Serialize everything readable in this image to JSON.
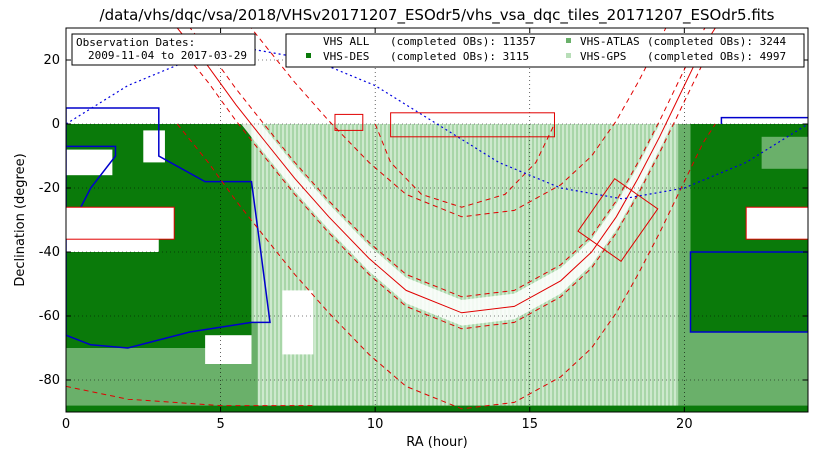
{
  "chart_data": {
    "type": "scatter",
    "title": "/data/vhs/dqc/vsa/2018/VHSv20171207_ESOdr5/vhs_vsa_dqc_tiles_20171207_ESOdr5.fits",
    "xlabel": "RA (hour)",
    "ylabel": "Declination (degree)",
    "xlim": [
      0,
      24
    ],
    "ylim": [
      -90,
      30
    ],
    "xticks": [
      0,
      5,
      10,
      15,
      20
    ],
    "yticks": [
      20,
      0,
      -20,
      -40,
      -60,
      -80
    ],
    "grid": true,
    "annotation": {
      "line1": "Observation Dates:",
      "line2": "2009-11-04 to 2017-03-29"
    },
    "legend": {
      "placement": "top-right",
      "entries": [
        {
          "label": "VHS ALL",
          "text": "(completed OBs): 11357",
          "color": ""
        },
        {
          "label": "VHS-ATLAS",
          "text": "(completed OBs): 3244",
          "color": "#6ab06a"
        },
        {
          "label": "VHS-DES",
          "text": "(completed OBs): 3115",
          "color": "#0a7a0a"
        },
        {
          "label": "VHS-GPS",
          "text": "(completed OBs): 4997",
          "color": "#b8deb8"
        }
      ]
    },
    "colors": {
      "des": "#0a7a0a",
      "atlas": "#6ab06a",
      "gps": "#b8deb8",
      "galactic": "#e00000",
      "ecliptic": "#0000e0",
      "footprint": "#0000cc",
      "box": "#e00000"
    },
    "regions": {
      "gps_band": {
        "ra": [
          3,
          21
        ],
        "dec": [
          -90,
          0
        ]
      },
      "atlas_left": {
        "ra": [
          0,
          6.2
        ],
        "dec": [
          -90,
          -62
        ]
      },
      "des_left": {
        "ra": [
          0,
          6
        ],
        "dec": [
          -70,
          0
        ]
      },
      "des_right": {
        "ra": [
          20.2,
          24
        ],
        "dec": [
          -65,
          0
        ]
      },
      "atlas_right": {
        "ra": [
          19.8,
          24
        ],
        "dec": [
          -90,
          0
        ]
      },
      "bottom_strip": {
        "ra": [
          0,
          24
        ],
        "dec": [
          -90,
          -88
        ]
      }
    },
    "galactic_plane": [
      [
        3.6,
        30
      ],
      [
        4.6,
        18
      ],
      [
        5.5,
        6
      ],
      [
        6.4,
        -5
      ],
      [
        7.4,
        -17
      ],
      [
        8.5,
        -29
      ],
      [
        9.8,
        -42
      ],
      [
        11.0,
        -52
      ],
      [
        12.8,
        -59
      ],
      [
        14.5,
        -57
      ],
      [
        16.0,
        -49
      ],
      [
        17.0,
        -40
      ],
      [
        17.8,
        -29
      ],
      [
        18.5,
        -17
      ],
      [
        19.2,
        -4
      ],
      [
        19.9,
        10
      ],
      [
        20.6,
        24
      ],
      [
        21.0,
        30
      ]
    ],
    "galactic_limits": [
      {
        "offset": 5
      },
      {
        "offset": -5
      },
      {
        "offset": 30
      },
      {
        "offset": -30
      }
    ],
    "ecliptic": [
      [
        0,
        0
      ],
      [
        2,
        12
      ],
      [
        4,
        20
      ],
      [
        6,
        23.4
      ],
      [
        8,
        20
      ],
      [
        10,
        12
      ],
      [
        12,
        0
      ],
      [
        14,
        -12
      ],
      [
        16,
        -20
      ],
      [
        18,
        -23.4
      ],
      [
        20,
        -20
      ],
      [
        22,
        -12
      ],
      [
        24,
        0
      ]
    ],
    "footprint_left": [
      [
        0,
        5
      ],
      [
        3,
        5
      ],
      [
        3,
        -10
      ],
      [
        4.5,
        -18
      ],
      [
        6,
        -18
      ],
      [
        6.3,
        -40
      ],
      [
        6.6,
        -62
      ],
      [
        6,
        -62
      ],
      [
        4,
        -65
      ],
      [
        2,
        -70
      ],
      [
        0.8,
        -69
      ],
      [
        0,
        -66
      ]
    ],
    "footprint_left_inner": [
      [
        0,
        -35
      ],
      [
        0.8,
        -20
      ],
      [
        1.6,
        -10
      ],
      [
        1.6,
        -7
      ],
      [
        0,
        -7
      ]
    ],
    "footprint_right": [
      [
        24,
        2
      ],
      [
        21.2,
        2
      ],
      [
        21.2,
        0
      ]
    ],
    "footprint_right_box": [
      [
        20.2,
        -40
      ],
      [
        24,
        -40
      ],
      [
        24,
        -65
      ],
      [
        20.2,
        -65
      ]
    ],
    "boxes": [
      {
        "ra": [
          8.7,
          9.6
        ],
        "dec": [
          -2,
          3
        ]
      },
      {
        "ra": [
          10.5,
          15.8
        ],
        "dec": [
          -4,
          3.5
        ]
      },
      {
        "ra": [
          0,
          3.5
        ],
        "dec": [
          -36,
          -26
        ]
      },
      {
        "ra": [
          22,
          24
        ],
        "dec": [
          -36,
          -26
        ]
      },
      {
        "ra": [
          17.0,
          18.7
        ],
        "dec": [
          -40,
          -20
        ],
        "rotated": true
      }
    ]
  }
}
